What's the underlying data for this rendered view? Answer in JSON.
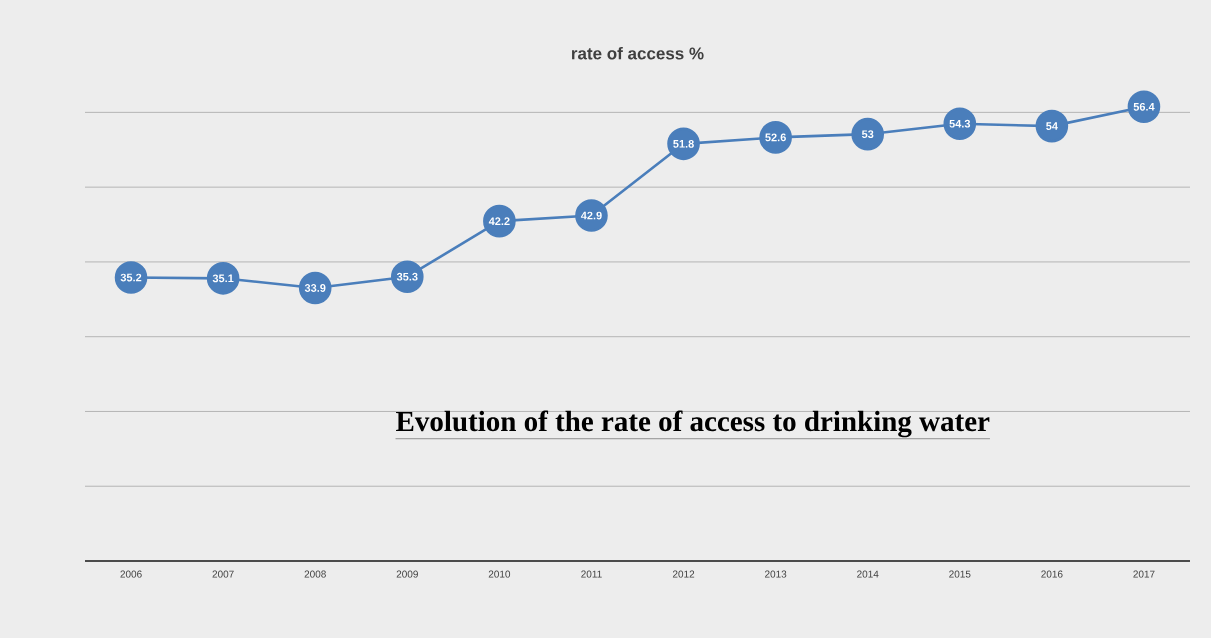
{
  "chart_data": {
    "type": "line",
    "title": "rate of access  %",
    "categories": [
      "2006",
      "2007",
      "2008",
      "2009",
      "2010",
      "2011",
      "2012",
      "2013",
      "2014",
      "2015",
      "2016",
      "2017"
    ],
    "values": [
      35.2,
      35.1,
      33.9,
      35.3,
      42.2,
      42.9,
      51.8,
      52.6,
      53,
      54.3,
      54,
      56.4
    ],
    "color": "#4a7ebb",
    "marker": "circle",
    "line_style": "solid",
    "data_labels": true,
    "grid": "y",
    "tick_labels": "x",
    "annotations": [
      "Evolution of the rate of access to drinking water"
    ]
  }
}
